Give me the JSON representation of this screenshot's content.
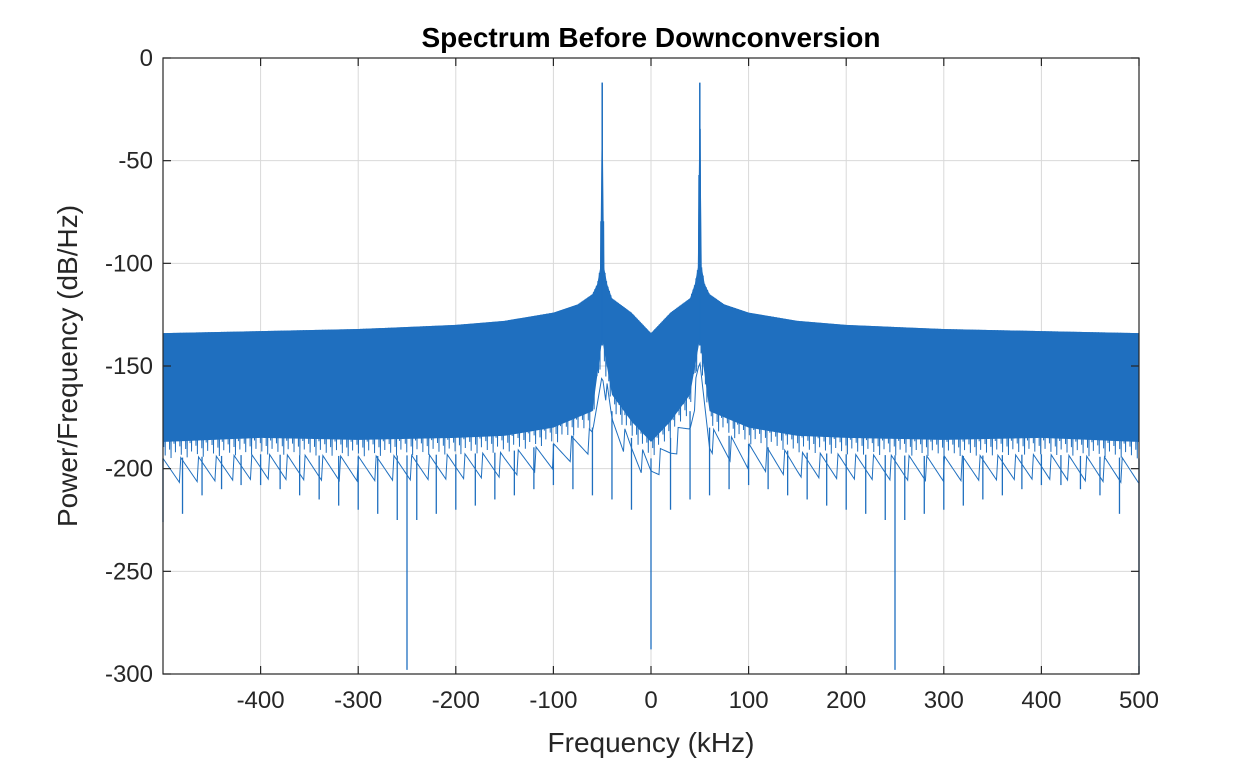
{
  "chart_data": {
    "type": "line",
    "title": "Spectrum Before Downconversion",
    "xlabel": "Frequency (kHz)",
    "ylabel": "Power/Frequency (dB/Hz)",
    "xlim": [
      -500,
      500
    ],
    "ylim": [
      -300,
      0
    ],
    "x_ticks": [
      -400,
      -300,
      -200,
      -100,
      0,
      100,
      200,
      300,
      400,
      500
    ],
    "x_tick_labels": [
      "-400",
      "-300",
      "-200",
      "-100",
      "0",
      "100",
      "200",
      "300",
      "400",
      "500"
    ],
    "y_ticks": [
      0,
      -50,
      -100,
      -150,
      -200,
      -250,
      -300
    ],
    "y_tick_labels": [
      "0",
      "-50",
      "-100",
      "-150",
      "-200",
      "-250",
      "-300"
    ],
    "grid": true,
    "series": [
      {
        "color": "#1f6fbf",
        "envelope_upper": {
          "x": [
            -500,
            -400,
            -300,
            -200,
            -150,
            -100,
            -75,
            -60,
            -55,
            -52,
            -50,
            -48,
            -45,
            -40,
            -20,
            -10,
            0,
            10,
            20,
            40,
            45,
            48,
            50,
            52,
            55,
            60,
            75,
            100,
            150,
            200,
            300,
            400,
            500
          ],
          "y": [
            -134,
            -133,
            -132,
            -130,
            -128,
            -124,
            -120,
            -115,
            -110,
            -102,
            -12,
            -102,
            -110,
            -117,
            -124,
            -129,
            -134,
            -129,
            -124,
            -117,
            -110,
            -102,
            -12,
            -102,
            -110,
            -115,
            -120,
            -124,
            -128,
            -130,
            -132,
            -133,
            -134
          ]
        },
        "envelope_lower": {
          "x": [
            -500,
            -400,
            -300,
            -200,
            -150,
            -100,
            -60,
            -50,
            -40,
            -20,
            0,
            20,
            40,
            50,
            60,
            100,
            150,
            200,
            300,
            400,
            500
          ],
          "y": [
            -195,
            -193,
            -194,
            -193,
            -192,
            -188,
            -180,
            -145,
            -172,
            -185,
            -195,
            -185,
            -172,
            -145,
            -180,
            -188,
            -192,
            -193,
            -194,
            -193,
            -195
          ]
        },
        "dips": {
          "x": [
            -500,
            -480,
            -460,
            -440,
            -420,
            -400,
            -380,
            -360,
            -340,
            -320,
            -300,
            -280,
            -260,
            -250,
            -240,
            -220,
            -200,
            -180,
            -160,
            -140,
            -120,
            -100,
            -80,
            -60,
            -40,
            -20,
            0,
            20,
            40,
            60,
            80,
            100,
            120,
            140,
            160,
            180,
            200,
            220,
            240,
            250,
            260,
            280,
            300,
            320,
            340,
            360,
            380,
            400,
            420,
            440,
            460,
            480,
            500
          ],
          "y": [
            -226,
            -222,
            -213,
            -210,
            -208,
            -208,
            -210,
            -213,
            -215,
            -218,
            -220,
            -222,
            -225,
            -298,
            -225,
            -222,
            -220,
            -218,
            -215,
            -213,
            -210,
            -208,
            -210,
            -213,
            -215,
            -220,
            -288,
            -220,
            -215,
            -213,
            -210,
            -208,
            -210,
            -213,
            -215,
            -218,
            -220,
            -222,
            -225,
            -298,
            -225,
            -222,
            -220,
            -218,
            -215,
            -213,
            -210,
            -208,
            -208,
            -210,
            -213,
            -222,
            -300
          ]
        }
      }
    ]
  }
}
